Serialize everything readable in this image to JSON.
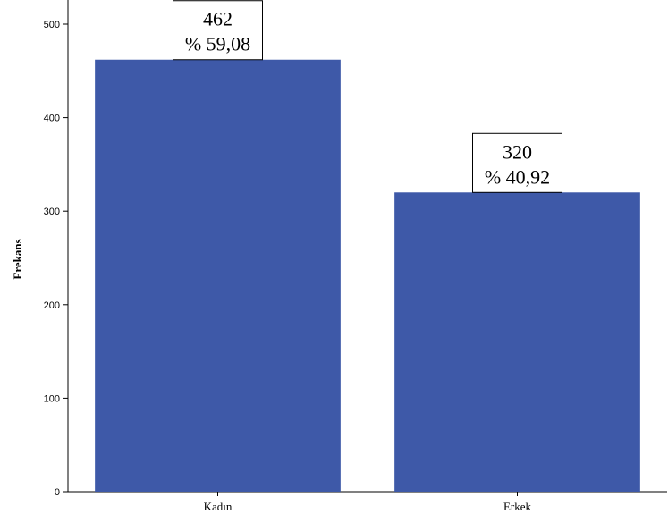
{
  "chart_data": {
    "type": "bar",
    "categories": [
      "Kadın",
      "Erkek"
    ],
    "values": [
      462,
      320
    ],
    "data_labels": [
      {
        "count": "462",
        "percent": "% 59,08"
      },
      {
        "count": "320",
        "percent": "% 40,92"
      }
    ],
    "title": "",
    "xlabel": "",
    "ylabel": "Frekans",
    "ylim": [
      0,
      500
    ],
    "yticks": [
      0,
      100,
      200,
      300,
      400,
      500
    ],
    "grid": false,
    "bar_color": "#3e59a8",
    "axis_color": "#000000"
  }
}
